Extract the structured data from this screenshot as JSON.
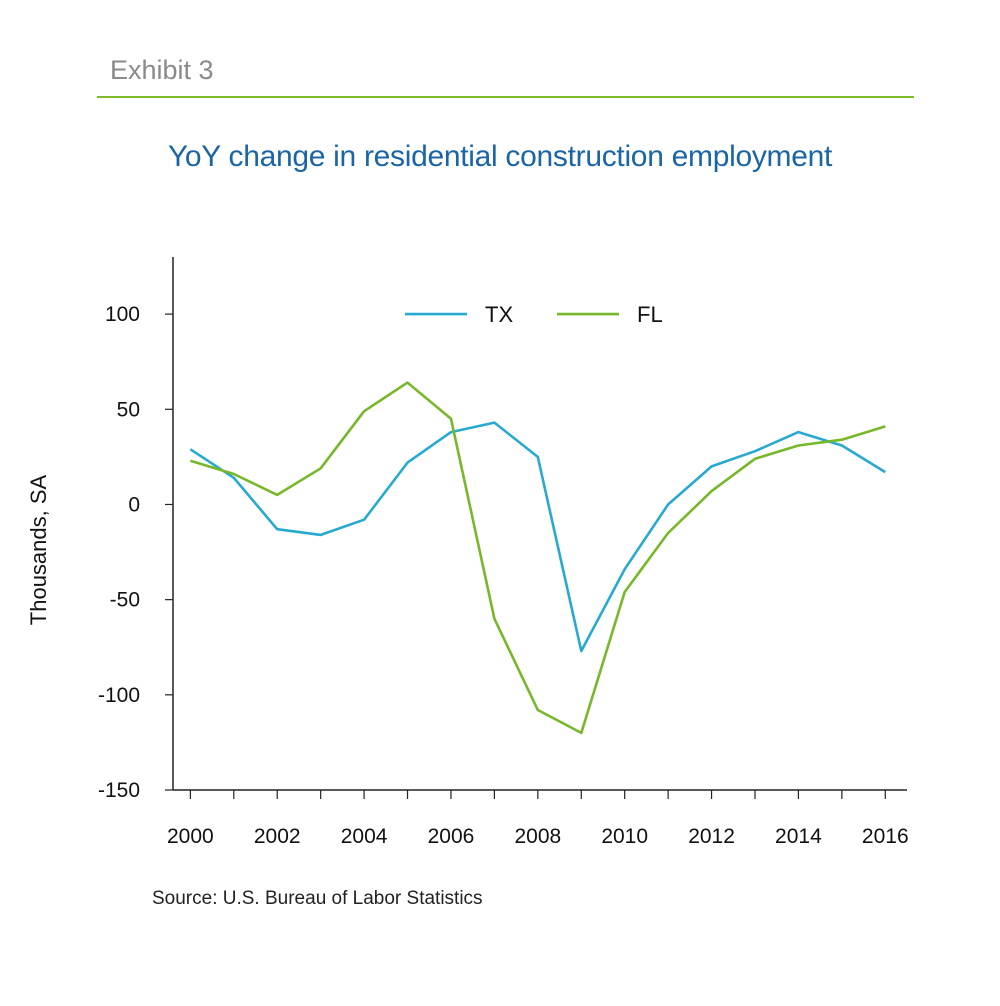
{
  "header": {
    "exhibit": "Exhibit 3",
    "title": "YoY change in residential construction employment",
    "source": "Source: U.S. Bureau of Labor Statistics"
  },
  "colors": {
    "TX": "#27a9d1",
    "FL": "#77b82a",
    "title": "#1a65a6",
    "rule": "#7dbb2a"
  },
  "chart_data": {
    "type": "line",
    "title": "YoY change in residential construction employment",
    "xlabel": "",
    "ylabel": "Thousands, SA",
    "x": [
      2000,
      2001,
      2002,
      2003,
      2004,
      2005,
      2006,
      2007,
      2008,
      2009,
      2010,
      2011,
      2012,
      2013,
      2014,
      2015,
      2016
    ],
    "x_tick_labels": [
      "2000",
      "2002",
      "2004",
      "2006",
      "2008",
      "2010",
      "2012",
      "2014",
      "2016"
    ],
    "y_tick_labels": [
      "100",
      "50",
      "0",
      "-50",
      "-100",
      "-150"
    ],
    "y_ticks": [
      100,
      50,
      0,
      -50,
      -100,
      -150
    ],
    "ylim": [
      -150,
      130
    ],
    "xlim": [
      1999.6,
      2016.5
    ],
    "legend_position": "top-center",
    "grid": false,
    "series": [
      {
        "name": "TX",
        "values": [
          29,
          14,
          -13,
          -16,
          -8,
          22,
          38,
          43,
          25,
          -77,
          -34,
          0,
          20,
          28,
          38,
          31,
          17
        ]
      },
      {
        "name": "FL",
        "values": [
          23,
          16,
          5,
          19,
          49,
          64,
          45,
          -60,
          -108,
          -120,
          -46,
          -15,
          7,
          24,
          31,
          34,
          41
        ]
      }
    ]
  }
}
